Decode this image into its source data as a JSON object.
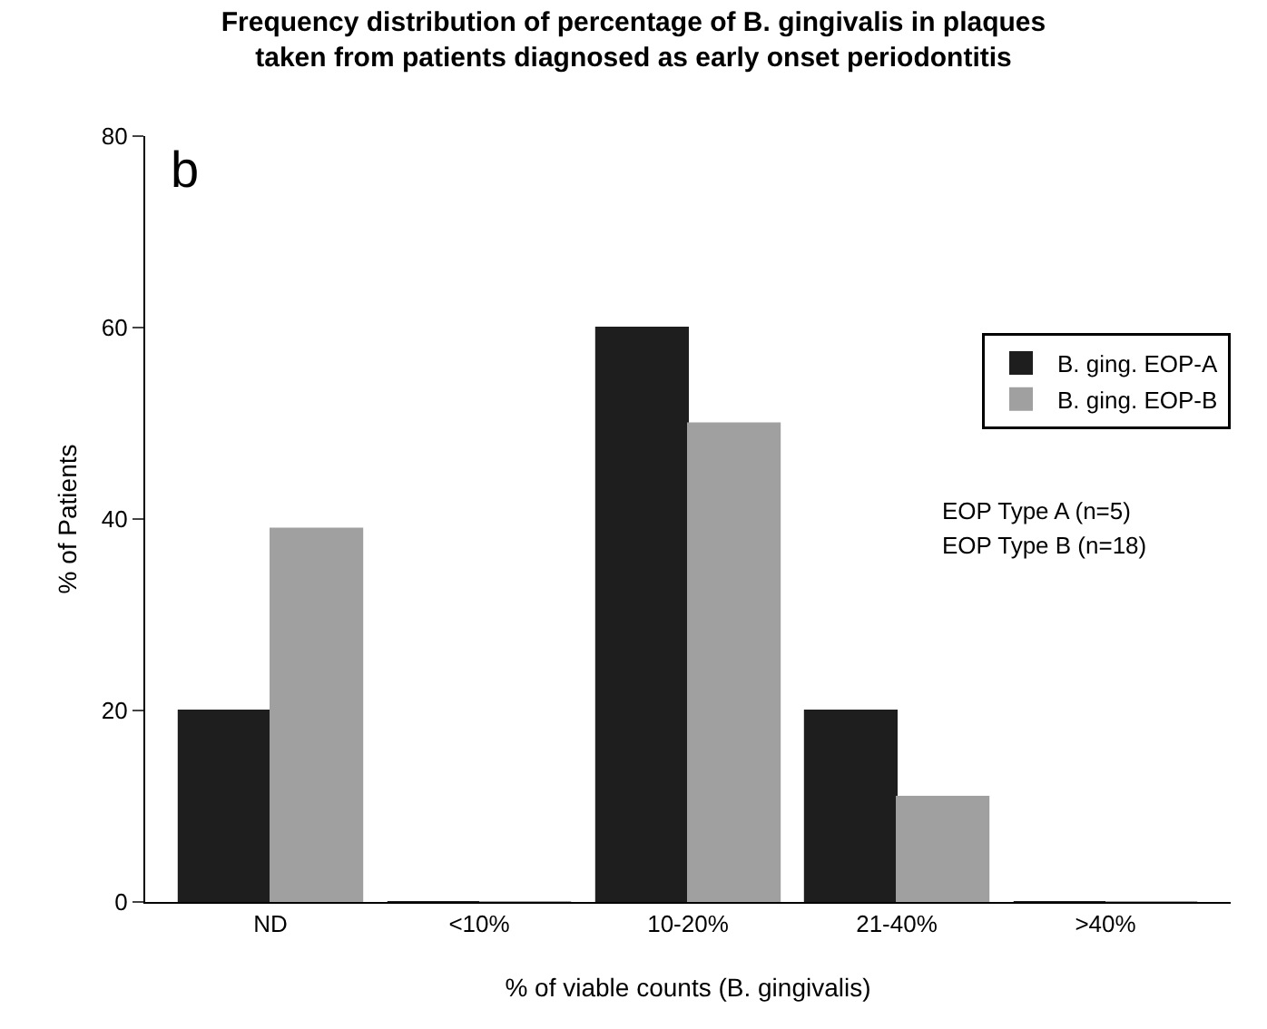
{
  "chart_data": {
    "type": "bar",
    "title": "Frequency distribution of percentage of B. gingivalis in plaques\ntaken from patients diagnosed as early onset periodontitis",
    "xlabel": "% of viable counts (B. gingivalis)",
    "ylabel": "% of Patients",
    "categories": [
      "ND",
      "<10%",
      "10-20%",
      "21-40%",
      ">40%"
    ],
    "series": [
      {
        "name": "B. ging. EOP-A",
        "color": "#1e1e1e",
        "values": [
          20,
          0,
          60,
          20,
          0
        ]
      },
      {
        "name": "B. ging. EOP-B",
        "color": "#a0a0a0",
        "values": [
          39,
          0,
          50,
          11,
          0
        ]
      }
    ],
    "ylim": [
      0,
      80
    ],
    "yticks": [
      0,
      20,
      40,
      60,
      80
    ],
    "grid": false,
    "legend": "right",
    "annotations": [
      "b",
      "EOP Type A (n=5)",
      "EOP Type B (n=18)"
    ]
  }
}
